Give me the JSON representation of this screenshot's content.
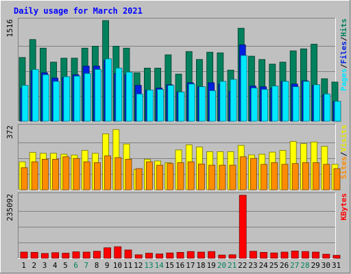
{
  "chart_data": {
    "type": "bar",
    "title": "Daily usage for March 2021",
    "days": [
      "1",
      "2",
      "3",
      "4",
      "5",
      "6",
      "7",
      "8",
      "9",
      "10",
      "11",
      "12",
      "13",
      "14",
      "15",
      "16",
      "17",
      "18",
      "19",
      "20",
      "21",
      "22",
      "23",
      "24",
      "25",
      "26",
      "27",
      "28",
      "29",
      "30",
      "31"
    ],
    "weekend_days": [
      "6",
      "7",
      "13",
      "14",
      "20",
      "21",
      "27",
      "28"
    ],
    "panels": [
      {
        "id": "hits",
        "ymax": 1516,
        "ymax_label": "1516",
        "legend": [
          "Pages",
          "Files",
          "Hits"
        ],
        "series": [
          {
            "name": "Hits",
            "color": "#00805c",
            "values": [
              960,
              1230,
              1100,
              890,
              950,
              950,
              1100,
              1130,
              1516,
              1130,
              1100,
              730,
              800,
              800,
              1000,
              710,
              1050,
              930,
              1040,
              1030,
              770,
              1400,
              980,
              930,
              860,
              890,
              1060,
              1090,
              1160,
              640,
              590
            ]
          },
          {
            "name": "Files",
            "color": "#0020e0",
            "values": [
              500,
              760,
              730,
              650,
              660,
              700,
              830,
              830,
              920,
              720,
              700,
              540,
              470,
              500,
              550,
              440,
              580,
              520,
              580,
              560,
              450,
              1150,
              530,
              520,
              500,
              600,
              560,
              610,
              540,
              400,
              300
            ]
          },
          {
            "name": "Pages",
            "color": "#00e8ff",
            "values": [
              540,
              780,
              700,
              600,
              670,
              680,
              720,
              780,
              940,
              800,
              740,
              410,
              470,
              480,
              540,
              440,
              560,
              520,
              460,
              600,
              630,
              990,
              500,
              480,
              530,
              600,
              520,
              600,
              550,
              410,
              300
            ]
          }
        ]
      },
      {
        "id": "sites",
        "ymax": 372,
        "ymax_label": "372",
        "legend": [
          "Sites",
          "Visits"
        ],
        "series": [
          {
            "name": "Visits",
            "color": "#ffff00",
            "values": [
              165,
              220,
              215,
              215,
              210,
              205,
              232,
              215,
              330,
              355,
              270,
              120,
              180,
              170,
              160,
              235,
              265,
              252,
              225,
              225,
              225,
              262,
              206,
              210,
              222,
              232,
              285,
              272,
              282,
              256,
              150
            ]
          },
          {
            "name": "Sites",
            "color": "#ff8c00",
            "values": [
              130,
              165,
              180,
              180,
              195,
              185,
              165,
              160,
              200,
              190,
              180,
              125,
              165,
              145,
              155,
              160,
              165,
              152,
              145,
              145,
              145,
              195,
              185,
              150,
              160,
              150,
              155,
              160,
              160,
              150,
              125
            ]
          }
        ]
      },
      {
        "id": "kbytes",
        "ymax": 235092,
        "ymax_label": "235092",
        "legend": [
          "KBytes"
        ],
        "series": [
          {
            "name": "KBytes",
            "color": "#ff0000",
            "values": [
              23000,
              22000,
              18000,
              21000,
              19000,
              24000,
              23000,
              26000,
              39000,
              43000,
              31000,
              13000,
              19000,
              16000,
              20000,
              22000,
              25000,
              23000,
              25000,
              12000,
              13000,
              235092,
              26000,
              22000,
              20000,
              23000,
              27000,
              25000,
              23000,
              15000,
              11000
            ]
          }
        ]
      }
    ]
  },
  "colors": {
    "background": "#c0c0c0",
    "title": "#0000ff",
    "weekend_label": "#00805c",
    "weekday_label": "#000000",
    "gridline": "#808080"
  }
}
